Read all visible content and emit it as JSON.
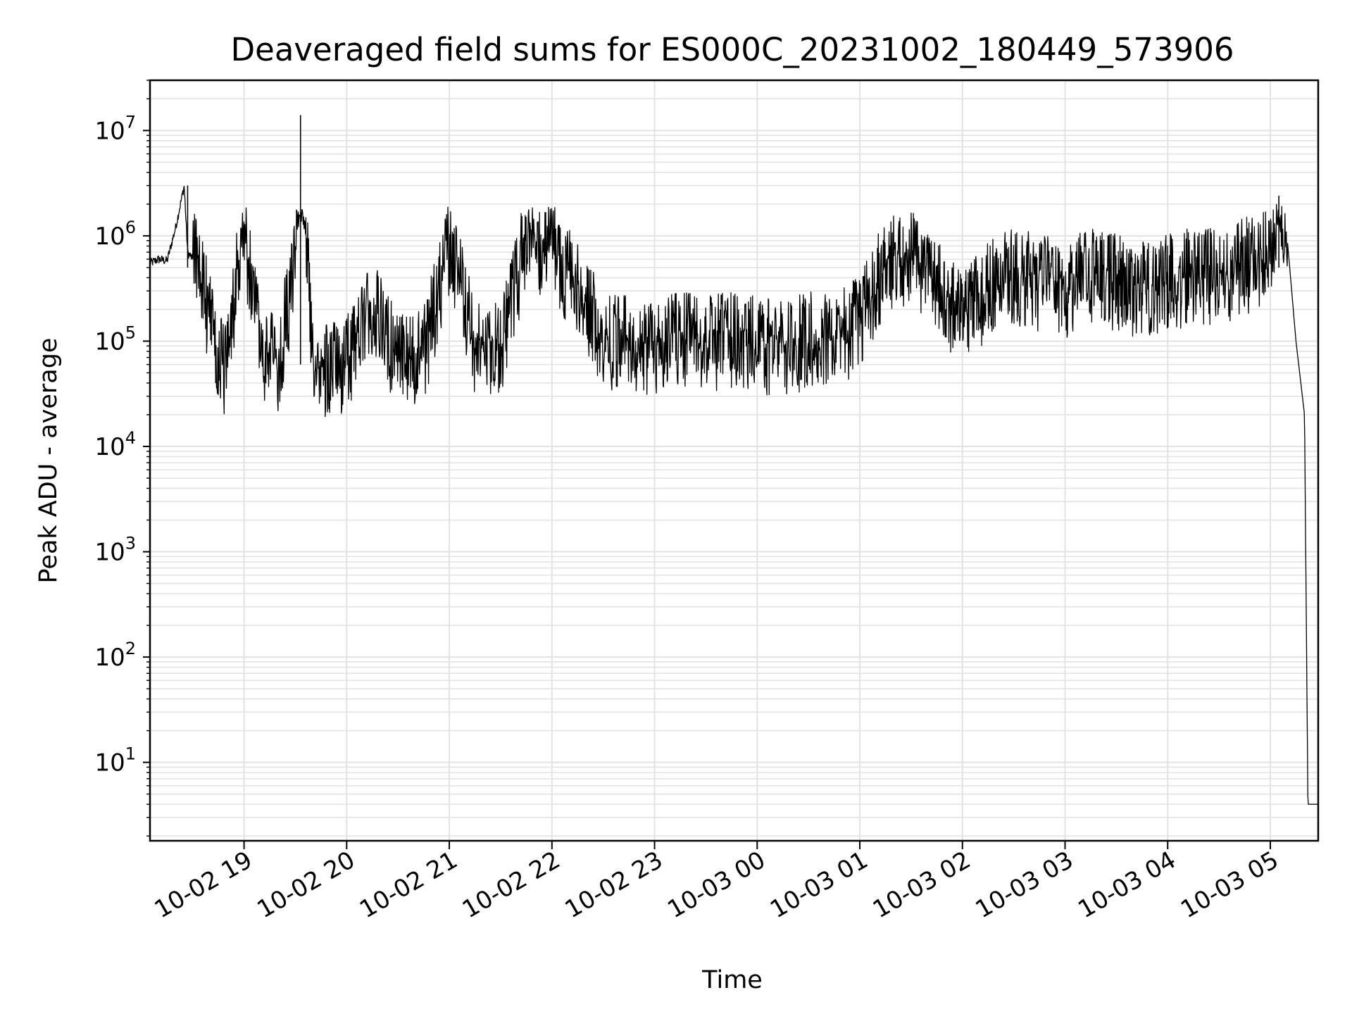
{
  "chart_data": {
    "type": "line",
    "title": "Deaveraged field sums for ES000C_20231002_180449_573906",
    "xlabel": "Time",
    "ylabel": "Peak ADU - average",
    "yscale": "log",
    "ylim": [
      1.8,
      30000000
    ],
    "xlim": [
      "10-02 18:05",
      "10-03 05:28"
    ],
    "grid": true,
    "line_color": "#000000",
    "x_ticks": [
      "10-02 19",
      "10-02 20",
      "10-02 21",
      "10-02 22",
      "10-02 23",
      "10-03 00",
      "10-03 01",
      "10-03 02",
      "10-03 03",
      "10-03 04",
      "10-03 05"
    ],
    "y_ticks": [
      {
        "base": "10",
        "exp": "1"
      },
      {
        "base": "10",
        "exp": "2"
      },
      {
        "base": "10",
        "exp": "3"
      },
      {
        "base": "10",
        "exp": "4"
      },
      {
        "base": "10",
        "exp": "5"
      },
      {
        "base": "10",
        "exp": "6"
      },
      {
        "base": "10",
        "exp": "7"
      }
    ],
    "series": [
      {
        "x": [
          "10-02 18:05",
          "10-02 18:10",
          "10-02 18:15",
          "10-02 18:20",
          "10-02 18:25",
          "10-02 18:27",
          "10-02 18:30",
          "10-02 18:35",
          "10-02 18:40",
          "10-02 18:45",
          "10-02 18:50",
          "10-02 18:55",
          "10-02 19:00",
          "10-02 19:10",
          "10-02 19:20",
          "10-02 19:30",
          "10-02 19:33",
          "10-02 19:40",
          "10-02 19:50",
          "10-02 20:00",
          "10-02 20:15",
          "10-02 20:30",
          "10-02 20:45",
          "10-02 21:00",
          "10-02 21:15",
          "10-02 21:30",
          "10-02 21:45",
          "10-02 22:00",
          "10-02 22:15",
          "10-02 22:30",
          "10-02 22:45",
          "10-02 23:00",
          "10-02 23:15",
          "10-02 23:30",
          "10-02 23:45",
          "10-03 00:00",
          "10-03 00:15",
          "10-03 00:30",
          "10-03 00:45",
          "10-03 01:00",
          "10-03 01:15",
          "10-03 01:30",
          "10-03 01:45",
          "10-03 02:00",
          "10-03 02:15",
          "10-03 02:30",
          "10-03 02:45",
          "10-03 03:00",
          "10-03 03:15",
          "10-03 03:30",
          "10-03 03:45",
          "10-03 04:00",
          "10-03 04:15",
          "10-03 04:30",
          "10-03 04:45",
          "10-03 05:00",
          "10-03 05:05",
          "10-03 05:10",
          "10-03 05:15",
          "10-03 05:20",
          "10-03 05:22",
          "10-03 05:28"
        ],
        "y": [
          550000,
          600000,
          580000,
          1200000,
          3000000,
          700000,
          600000,
          400000,
          150000,
          60000,
          50000,
          300000,
          1000000,
          80000,
          60000,
          500000,
          14000000,
          60000,
          50000,
          60000,
          200000,
          60000,
          70000,
          800000,
          90000,
          80000,
          900000,
          700000,
          300000,
          100000,
          90000,
          80000,
          100000,
          90000,
          100000,
          90000,
          80000,
          100000,
          90000,
          150000,
          500000,
          600000,
          300000,
          150000,
          300000,
          400000,
          350000,
          300000,
          400000,
          350000,
          300000,
          350000,
          400000,
          400000,
          500000,
          600000,
          2400000,
          900000,
          100000,
          20000,
          4,
          4
        ]
      }
    ]
  }
}
